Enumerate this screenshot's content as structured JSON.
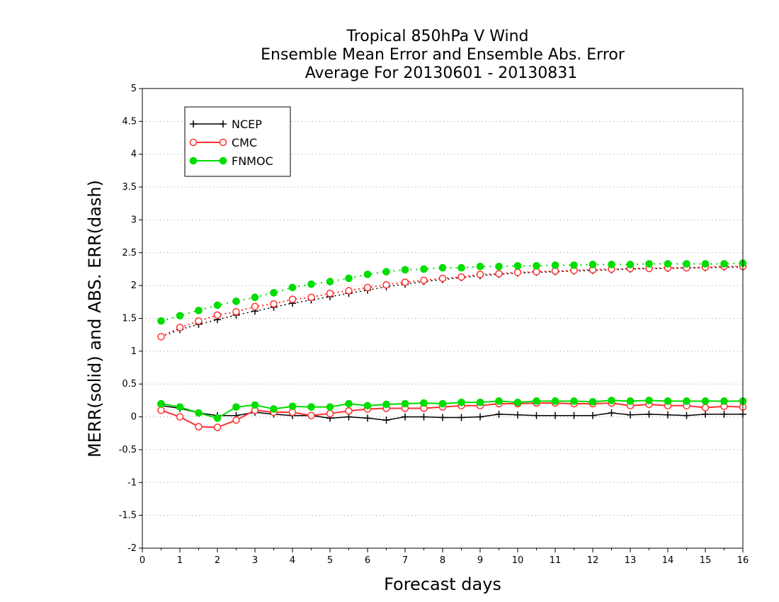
{
  "chart_data": {
    "type": "line",
    "title_lines": [
      "Tropical 850hPa V Wind",
      "Ensemble Mean Error and Ensemble Abs. Error",
      "Average For 20130601 - 20130831"
    ],
    "xlabel": "Forecast days",
    "ylabel": "MERR(solid) and ABS. ERR(dash)",
    "xlim": [
      0,
      16
    ],
    "ylim": [
      -2,
      5
    ],
    "x_ticks": [
      "0",
      "1",
      "2",
      "3",
      "4",
      "5",
      "6",
      "7",
      "8",
      "9",
      "10",
      "11",
      "12",
      "13",
      "14",
      "15",
      "16"
    ],
    "y_ticks": [
      "-2",
      "-1.5",
      "-1",
      "-0.5",
      "0",
      "0.5",
      "1",
      "1.5",
      "2",
      "2.5",
      "3",
      "3.5",
      "4",
      "4.5",
      "5"
    ],
    "grid": "horizontal dotted",
    "legend_placement": "top-left",
    "x": [
      0.5,
      1,
      1.5,
      2,
      2.5,
      3,
      3.5,
      4,
      4.5,
      5,
      5.5,
      6,
      6.5,
      7,
      7.5,
      8,
      8.5,
      9,
      9.5,
      10,
      10.5,
      11,
      11.5,
      12,
      12.5,
      13,
      13.5,
      14,
      14.5,
      15,
      15.5,
      16
    ],
    "series": [
      {
        "name": "NCEP",
        "color": "#000000",
        "marker": "plus",
        "merr": [
          0.17,
          0.13,
          0.06,
          0.02,
          0.02,
          0.07,
          0.04,
          0.02,
          0.02,
          -0.02,
          0.0,
          -0.02,
          -0.05,
          0.0,
          0.0,
          -0.01,
          -0.01,
          0.0,
          0.04,
          0.03,
          0.02,
          0.02,
          0.02,
          0.02,
          0.06,
          0.03,
          0.04,
          0.03,
          0.02,
          0.04,
          0.04,
          0.04
        ],
        "abs_err": [
          1.22,
          1.33,
          1.41,
          1.48,
          1.55,
          1.61,
          1.67,
          1.73,
          1.78,
          1.83,
          1.88,
          1.93,
          1.98,
          2.02,
          2.06,
          2.09,
          2.12,
          2.15,
          2.17,
          2.19,
          2.2,
          2.21,
          2.22,
          2.23,
          2.24,
          2.25,
          2.26,
          2.26,
          2.27,
          2.27,
          2.28,
          2.28
        ]
      },
      {
        "name": "CMC",
        "color": "#ff3030",
        "marker": "open-circle",
        "merr": [
          0.1,
          0.0,
          -0.15,
          -0.16,
          -0.05,
          0.1,
          0.07,
          0.07,
          0.02,
          0.05,
          0.09,
          0.12,
          0.13,
          0.13,
          0.13,
          0.15,
          0.17,
          0.17,
          0.2,
          0.2,
          0.21,
          0.21,
          0.2,
          0.2,
          0.21,
          0.17,
          0.19,
          0.17,
          0.17,
          0.14,
          0.16,
          0.15
        ],
        "abs_err": [
          1.22,
          1.36,
          1.46,
          1.55,
          1.6,
          1.68,
          1.72,
          1.79,
          1.82,
          1.88,
          1.92,
          1.97,
          2.01,
          2.05,
          2.08,
          2.11,
          2.13,
          2.17,
          2.18,
          2.2,
          2.21,
          2.22,
          2.23,
          2.24,
          2.25,
          2.26,
          2.26,
          2.27,
          2.27,
          2.28,
          2.29,
          2.29
        ]
      },
      {
        "name": "FNMOC",
        "color": "#00dd00",
        "marker": "filled-circle",
        "merr": [
          0.2,
          0.15,
          0.06,
          -0.02,
          0.15,
          0.18,
          0.12,
          0.16,
          0.15,
          0.15,
          0.2,
          0.17,
          0.19,
          0.2,
          0.21,
          0.2,
          0.22,
          0.22,
          0.24,
          0.22,
          0.24,
          0.24,
          0.24,
          0.23,
          0.25,
          0.24,
          0.25,
          0.24,
          0.24,
          0.24,
          0.24,
          0.24
        ],
        "abs_err": [
          1.46,
          1.54,
          1.62,
          1.7,
          1.76,
          1.82,
          1.89,
          1.97,
          2.02,
          2.06,
          2.11,
          2.17,
          2.21,
          2.24,
          2.25,
          2.27,
          2.27,
          2.29,
          2.29,
          2.3,
          2.3,
          2.31,
          2.31,
          2.32,
          2.32,
          2.32,
          2.33,
          2.33,
          2.33,
          2.33,
          2.33,
          2.34
        ]
      }
    ]
  }
}
